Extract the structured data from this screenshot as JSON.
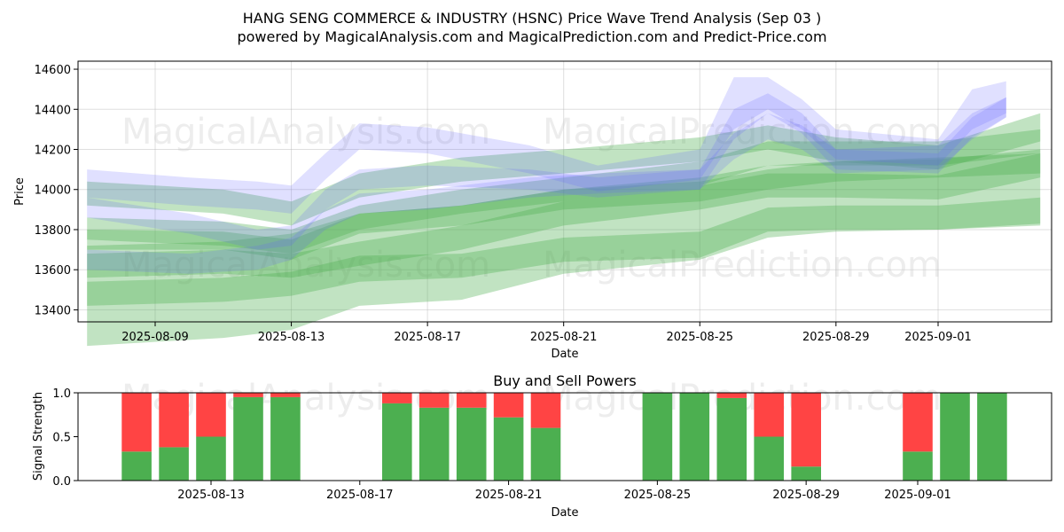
{
  "chart_data": [
    {
      "type": "area",
      "title": "HANG SENG COMMERCE & INDUSTRY (HSNC) Price Wave Trend Analysis (Sep 03 )",
      "subtitle": "powered by MagicalAnalysis.com and MagicalPrediction.com and Predict-Price.com",
      "xlabel": "Date",
      "ylabel": "Price",
      "x_ticks": [
        "2025-08-09",
        "2025-08-13",
        "2025-08-17",
        "2025-08-21",
        "2025-08-25",
        "2025-08-29",
        "2025-09-01"
      ],
      "y_ticks": [
        13400,
        13600,
        13800,
        14000,
        14200,
        14400,
        14600
      ],
      "ylim": [
        13340,
        14640
      ],
      "grid": true,
      "green_bands": [
        {
          "x": [
            "2025-08-07",
            "2025-08-11",
            "2025-08-13",
            "2025-08-15",
            "2025-08-18",
            "2025-08-21",
            "2025-08-25",
            "2025-08-27",
            "2025-08-29",
            "2025-09-01",
            "2025-09-04"
          ],
          "low": [
            13420,
            13440,
            13470,
            13540,
            13560,
            13640,
            13660,
            13790,
            13800,
            13800,
            13830
          ],
          "high": [
            13540,
            13560,
            13590,
            13670,
            13680,
            13760,
            13790,
            13910,
            13920,
            13920,
            13960
          ]
        },
        {
          "x": [
            "2025-08-07",
            "2025-08-11",
            "2025-08-13",
            "2025-08-15",
            "2025-08-18",
            "2025-08-21",
            "2025-08-25",
            "2025-08-27",
            "2025-08-29",
            "2025-09-01",
            "2025-09-04"
          ],
          "low": [
            13560,
            13580,
            13560,
            13620,
            13700,
            13820,
            13900,
            13960,
            13960,
            13950,
            14060
          ],
          "high": [
            13680,
            13700,
            13680,
            13740,
            13820,
            13940,
            14020,
            14080,
            14080,
            14070,
            14180
          ]
        },
        {
          "x": [
            "2025-08-07",
            "2025-08-11",
            "2025-08-13",
            "2025-08-15",
            "2025-08-18",
            "2025-08-21",
            "2025-08-25",
            "2025-08-27",
            "2025-08-29",
            "2025-09-01",
            "2025-09-04"
          ],
          "low": [
            13700,
            13700,
            13650,
            13780,
            13820,
            13900,
            13940,
            14000,
            14040,
            14060,
            14080
          ],
          "high": [
            13800,
            13790,
            13750,
            13880,
            13920,
            14000,
            14040,
            14100,
            14140,
            14160,
            14180
          ]
        },
        {
          "x": [
            "2025-08-07",
            "2025-08-11",
            "2025-08-13",
            "2025-08-15",
            "2025-08-18",
            "2025-08-21",
            "2025-08-25",
            "2025-08-27",
            "2025-08-29",
            "2025-09-01",
            "2025-09-04"
          ],
          "low": [
            13750,
            13720,
            13680,
            13800,
            13880,
            13940,
            14020,
            14120,
            14120,
            14120,
            14180
          ],
          "high": [
            13860,
            13840,
            13800,
            13920,
            14000,
            14060,
            14140,
            14240,
            14240,
            14240,
            14300
          ]
        },
        {
          "x": [
            "2025-08-07",
            "2025-08-11",
            "2025-08-13",
            "2025-08-15",
            "2025-08-18",
            "2025-08-21",
            "2025-08-25",
            "2025-08-27",
            "2025-08-29",
            "2025-09-01",
            "2025-09-04"
          ],
          "low": [
            13920,
            13880,
            13820,
            13960,
            14040,
            14080,
            14140,
            14200,
            14140,
            14100,
            14240
          ],
          "high": [
            14040,
            14000,
            13940,
            14080,
            14160,
            14200,
            14260,
            14320,
            14260,
            14220,
            14380
          ]
        },
        {
          "x": [
            "2025-08-07",
            "2025-08-11",
            "2025-08-13",
            "2025-08-15",
            "2025-08-18",
            "2025-08-21",
            "2025-08-25",
            "2025-08-27",
            "2025-08-29",
            "2025-09-01",
            "2025-09-04"
          ],
          "low": [
            13220,
            13260,
            13300,
            13420,
            13450,
            13580,
            13650,
            13760,
            13790,
            13800,
            13820
          ],
          "high": [
            13720,
            13740,
            13780,
            13880,
            13920,
            14000,
            14060,
            14120,
            14140,
            14150,
            14200
          ]
        }
      ],
      "blue_bands": [
        {
          "x": [
            "2025-08-07",
            "2025-08-10",
            "2025-08-12",
            "2025-08-13",
            "2025-08-14",
            "2025-08-15",
            "2025-08-17",
            "2025-08-20",
            "2025-08-22",
            "2025-08-25",
            "2025-08-26",
            "2025-08-27",
            "2025-08-28",
            "2025-08-29",
            "2025-09-01",
            "2025-09-02",
            "2025-09-03"
          ],
          "low": [
            13960,
            13920,
            13900,
            13880,
            14050,
            14200,
            14180,
            14080,
            13990,
            14050,
            14300,
            14400,
            14300,
            14150,
            14120,
            14300,
            14380
          ],
          "high": [
            14100,
            14060,
            14040,
            14020,
            14180,
            14330,
            14310,
            14220,
            14120,
            14200,
            14560,
            14560,
            14450,
            14300,
            14250,
            14500,
            14540
          ]
        },
        {
          "x": [
            "2025-08-07",
            "2025-08-10",
            "2025-08-12",
            "2025-08-13",
            "2025-08-14",
            "2025-08-15",
            "2025-08-17",
            "2025-08-20",
            "2025-08-22",
            "2025-08-25",
            "2025-08-26",
            "2025-08-27",
            "2025-08-28",
            "2025-08-29",
            "2025-09-01",
            "2025-09-02",
            "2025-09-03"
          ],
          "low": [
            13600,
            13580,
            13600,
            13650,
            13800,
            13880,
            13900,
            13960,
            13980,
            14000,
            14150,
            14250,
            14200,
            14080,
            14100,
            14250,
            14360
          ],
          "high": [
            13700,
            13680,
            13720,
            13760,
            13900,
            13980,
            14000,
            14060,
            14080,
            14100,
            14280,
            14380,
            14320,
            14200,
            14220,
            14380,
            14460
          ]
        },
        {
          "x": [
            "2025-08-07",
            "2025-08-10",
            "2025-08-12",
            "2025-08-13",
            "2025-08-14",
            "2025-08-15",
            "2025-08-17",
            "2025-08-20",
            "2025-08-22",
            "2025-08-25",
            "2025-08-26",
            "2025-08-27",
            "2025-08-28",
            "2025-08-29",
            "2025-09-01",
            "2025-09-02",
            "2025-09-03"
          ],
          "low": [
            13860,
            13780,
            13700,
            13720,
            13900,
            14000,
            14020,
            14000,
            13960,
            14000,
            14250,
            14380,
            14280,
            14100,
            14080,
            14260,
            14360
          ],
          "high": [
            13960,
            13880,
            13800,
            13820,
            14000,
            14100,
            14120,
            14100,
            14060,
            14100,
            14400,
            14480,
            14380,
            14200,
            14180,
            14360,
            14460
          ]
        }
      ]
    },
    {
      "type": "bar",
      "title": "Buy and Sell Powers",
      "xlabel": "Date",
      "ylabel": "Signal Strength",
      "x_ticks": [
        "2025-08-13",
        "2025-08-17",
        "2025-08-21",
        "2025-08-25",
        "2025-08-29",
        "2025-09-01"
      ],
      "y_ticks": [
        0.0,
        0.5,
        1.0
      ],
      "ylim": [
        0,
        1
      ],
      "categories": [
        "2025-08-11",
        "2025-08-12",
        "2025-08-13",
        "2025-08-14",
        "2025-08-15",
        "2025-08-18",
        "2025-08-19",
        "2025-08-20",
        "2025-08-21",
        "2025-08-22",
        "2025-08-25",
        "2025-08-26",
        "2025-08-27",
        "2025-08-28",
        "2025-08-29",
        "2025-09-01",
        "2025-09-02",
        "2025-09-03"
      ],
      "series": [
        {
          "name": "buy",
          "values": [
            0.33,
            0.38,
            0.5,
            0.95,
            0.95,
            0.88,
            0.83,
            0.83,
            0.72,
            0.6,
            1.0,
            1.0,
            0.94,
            0.5,
            0.16,
            0.33,
            1.0,
            1.0
          ]
        },
        {
          "name": "sell",
          "values": [
            0.67,
            0.62,
            0.5,
            0.05,
            0.05,
            0.12,
            0.17,
            0.17,
            0.28,
            0.4,
            0.0,
            0.0,
            0.06,
            0.5,
            0.84,
            0.67,
            0.0,
            0.0
          ]
        }
      ]
    }
  ],
  "watermarks": [
    "MagicalAnalysis.com",
    "MagicalPrediction.com"
  ],
  "colors": {
    "buy": "#4caf50",
    "sell": "#ff4444",
    "green_band": "#4caf50",
    "blue_band": "#6666ff"
  }
}
